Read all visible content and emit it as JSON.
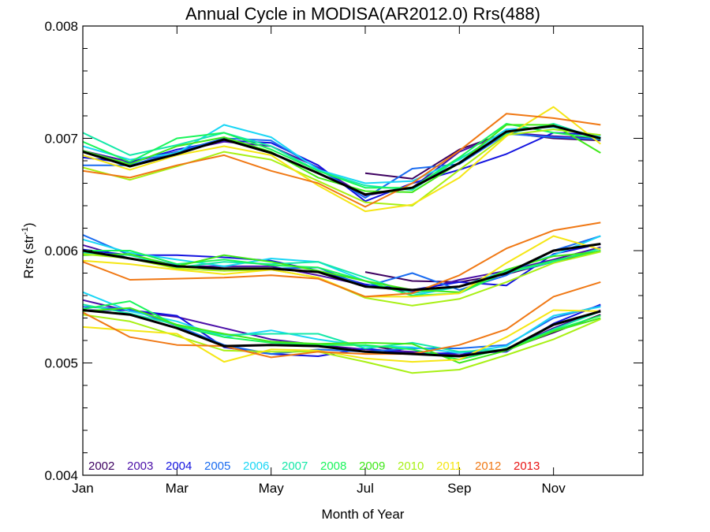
{
  "chart_data": {
    "type": "line",
    "title": "Annual Cycle in MODISA(AR2012.0) Rrs(488)",
    "xlabel": "Month of Year",
    "ylabel": "Rrs (str",
    "ylabel_sup": "-1",
    "ylabel_end": ")",
    "xlim": [
      1,
      12.9
    ],
    "ylim": [
      0.004,
      0.008
    ],
    "x_ticks": [
      {
        "value": 1,
        "label": "Jan"
      },
      {
        "value": 3,
        "label": "Mar"
      },
      {
        "value": 5,
        "label": "May"
      },
      {
        "value": 7,
        "label": "Jul"
      },
      {
        "value": 9,
        "label": "Sep"
      },
      {
        "value": 11,
        "label": "Nov"
      }
    ],
    "y_ticks": [
      {
        "value": 0.004,
        "label": "0.004"
      },
      {
        "value": 0.005,
        "label": "0.005"
      },
      {
        "value": 0.006,
        "label": "0.006"
      },
      {
        "value": 0.007,
        "label": "0.007"
      },
      {
        "value": 0.008,
        "label": "0.008"
      }
    ],
    "x": [
      1,
      2,
      3,
      4,
      5,
      6,
      7,
      8,
      9,
      10,
      11,
      12
    ],
    "legend_placement": "bottom-left",
    "series": [
      {
        "name": "2002",
        "color": "#3d0060",
        "groups": [
          [
            null,
            null,
            null,
            null,
            null,
            null,
            6.69,
            6.64,
            6.9,
            7.05,
            7.0,
            6.98
          ],
          [
            null,
            null,
            null,
            null,
            null,
            null,
            5.81,
            5.73,
            5.72,
            5.79,
            5.9,
            6.0
          ],
          [
            null,
            null,
            null,
            null,
            null,
            null,
            5.16,
            5.09,
            5.07,
            5.12,
            5.27,
            5.43
          ]
        ]
      },
      {
        "name": "2003",
        "color": "#4b0fa8",
        "groups": [
          [
            6.89,
            6.79,
            6.88,
            6.97,
            6.93,
            6.74,
            6.49,
            6.56,
            6.88,
            7.05,
            7.02,
            7.0
          ],
          [
            6.05,
            5.93,
            5.86,
            5.86,
            5.86,
            5.78,
            5.69,
            5.63,
            5.74,
            5.82,
            5.92,
            6.03
          ],
          [
            5.56,
            5.46,
            5.41,
            5.31,
            5.21,
            5.16,
            5.12,
            5.1,
            5.07,
            5.12,
            5.31,
            5.47
          ]
        ]
      },
      {
        "name": "2004",
        "color": "#1313e0",
        "groups": [
          [
            6.83,
            6.78,
            6.9,
            6.98,
            6.96,
            6.76,
            6.44,
            6.6,
            6.72,
            6.86,
            7.05,
            7.03
          ],
          [
            6.01,
            5.96,
            5.96,
            5.94,
            5.91,
            5.82,
            5.7,
            5.65,
            5.72,
            5.69,
            5.97,
            6.06
          ],
          [
            5.47,
            5.47,
            5.42,
            5.14,
            5.08,
            5.06,
            5.13,
            5.08,
            5.09,
            5.1,
            5.35,
            5.52
          ]
        ]
      },
      {
        "name": "2005",
        "color": "#1a6cf0",
        "groups": [
          [
            6.76,
            6.76,
            6.88,
            7.0,
            6.98,
            6.73,
            6.47,
            6.73,
            6.77,
            7.04,
            7.01,
            6.99
          ],
          [
            6.14,
            5.96,
            5.87,
            5.82,
            5.84,
            5.85,
            5.68,
            5.8,
            5.65,
            5.78,
            6.0,
            6.13
          ],
          [
            5.5,
            5.48,
            5.33,
            5.16,
            5.08,
            5.12,
            5.1,
            5.13,
            5.13,
            5.16,
            5.4,
            5.51
          ]
        ]
      },
      {
        "name": "2006",
        "color": "#1ad6f5",
        "groups": [
          [
            6.93,
            6.81,
            6.87,
            7.12,
            7.01,
            6.72,
            6.6,
            6.62,
            6.81,
            7.08,
            7.1,
            7.02
          ],
          [
            6.1,
            5.98,
            5.92,
            5.86,
            5.93,
            5.9,
            5.73,
            5.6,
            5.68,
            5.82,
            5.96,
            6.13
          ],
          [
            5.63,
            5.46,
            5.37,
            5.23,
            5.29,
            5.21,
            5.15,
            5.14,
            5.09,
            5.15,
            5.42,
            5.5
          ]
        ]
      },
      {
        "name": "2007",
        "color": "#14e8a8",
        "groups": [
          [
            7.05,
            6.85,
            6.94,
            7.05,
            6.93,
            6.71,
            6.58,
            6.54,
            6.82,
            7.04,
            7.13,
            6.99
          ],
          [
            5.98,
            5.96,
            5.85,
            5.9,
            5.88,
            5.9,
            5.76,
            5.62,
            5.68,
            5.8,
            5.9,
            6.02
          ],
          [
            5.52,
            5.44,
            5.34,
            5.25,
            5.26,
            5.26,
            5.13,
            5.18,
            5.1,
            5.12,
            5.3,
            5.46
          ]
        ]
      },
      {
        "name": "2008",
        "color": "#19f55a",
        "groups": [
          [
            6.97,
            6.79,
            7.0,
            7.05,
            6.9,
            6.71,
            6.56,
            6.56,
            6.83,
            7.13,
            7.05,
            7.0
          ],
          [
            6.0,
            6.0,
            5.88,
            5.92,
            5.87,
            5.85,
            5.73,
            5.6,
            5.62,
            5.81,
            5.91,
            6.0
          ],
          [
            5.48,
            5.55,
            5.33,
            5.23,
            5.18,
            5.16,
            5.16,
            5.12,
            5.03,
            5.13,
            5.29,
            5.42
          ]
        ]
      },
      {
        "name": "2009",
        "color": "#40e81a",
        "groups": [
          [
            6.89,
            6.77,
            6.93,
            7.01,
            6.88,
            6.65,
            6.53,
            6.52,
            6.78,
            7.12,
            7.12,
            6.87
          ],
          [
            5.96,
            5.97,
            5.86,
            5.96,
            5.9,
            5.82,
            5.73,
            5.65,
            5.63,
            5.83,
            5.95,
            5.99
          ],
          [
            5.46,
            5.49,
            5.34,
            5.26,
            5.19,
            5.17,
            5.18,
            5.17,
            5.0,
            5.11,
            5.28,
            5.4
          ]
        ]
      },
      {
        "name": "2010",
        "color": "#a8f014",
        "groups": [
          [
            6.74,
            6.63,
            6.75,
            6.88,
            6.81,
            6.62,
            6.43,
            6.4,
            6.72,
            7.03,
            7.08,
            7.03
          ],
          [
            5.97,
            5.93,
            5.84,
            5.82,
            5.83,
            5.76,
            5.58,
            5.51,
            5.57,
            5.72,
            5.89,
            5.99
          ],
          [
            5.43,
            5.37,
            5.24,
            5.11,
            5.1,
            5.1,
            5.01,
            4.91,
            4.94,
            5.07,
            5.21,
            5.39
          ]
        ]
      },
      {
        "name": "2011",
        "color": "#f5e614",
        "groups": [
          [
            6.85,
            6.72,
            6.85,
            6.93,
            6.85,
            6.58,
            6.35,
            6.41,
            6.65,
            7.02,
            7.28,
            6.95
          ],
          [
            5.91,
            5.88,
            5.83,
            5.79,
            5.83,
            5.76,
            5.59,
            5.59,
            5.62,
            5.89,
            6.13,
            6.01
          ],
          [
            5.32,
            5.29,
            5.26,
            5.01,
            5.12,
            5.11,
            5.04,
            5.01,
            5.03,
            5.23,
            5.47,
            5.46
          ]
        ]
      },
      {
        "name": "2012",
        "color": "#f07814",
        "groups": [
          [
            6.71,
            6.65,
            6.76,
            6.85,
            6.71,
            6.6,
            6.39,
            6.6,
            6.89,
            7.22,
            7.18,
            7.12
          ],
          [
            5.9,
            5.74,
            5.75,
            5.76,
            5.78,
            5.75,
            5.59,
            5.62,
            5.78,
            6.02,
            6.18,
            6.25
          ],
          [
            5.45,
            5.23,
            5.16,
            5.15,
            5.05,
            5.1,
            5.08,
            5.08,
            5.16,
            5.3,
            5.59,
            5.72
          ]
        ]
      },
      {
        "name": "2013",
        "color": "#e81414",
        "groups": [
          [
            null,
            null,
            null,
            null,
            null,
            null,
            null,
            null,
            null,
            null,
            null,
            null
          ],
          [
            null,
            null,
            null,
            null,
            null,
            null,
            null,
            null,
            null,
            null,
            null,
            null
          ],
          [
            null,
            null,
            null,
            null,
            null,
            null,
            null,
            null,
            null,
            null,
            null,
            null
          ]
        ]
      }
    ],
    "mean_series": {
      "color": "#000000",
      "groups": [
        [
          6.88,
          6.75,
          6.86,
          6.99,
          6.87,
          6.69,
          6.5,
          6.56,
          6.78,
          7.06,
          7.11,
          7.0
        ],
        [
          6.0,
          5.93,
          5.86,
          5.84,
          5.84,
          5.81,
          5.68,
          5.65,
          5.68,
          5.8,
          6.0,
          6.06
        ],
        [
          5.47,
          5.43,
          5.31,
          5.15,
          5.16,
          5.15,
          5.1,
          5.08,
          5.06,
          5.12,
          5.34,
          5.46
        ]
      ]
    },
    "value_scale": 0.001
  }
}
